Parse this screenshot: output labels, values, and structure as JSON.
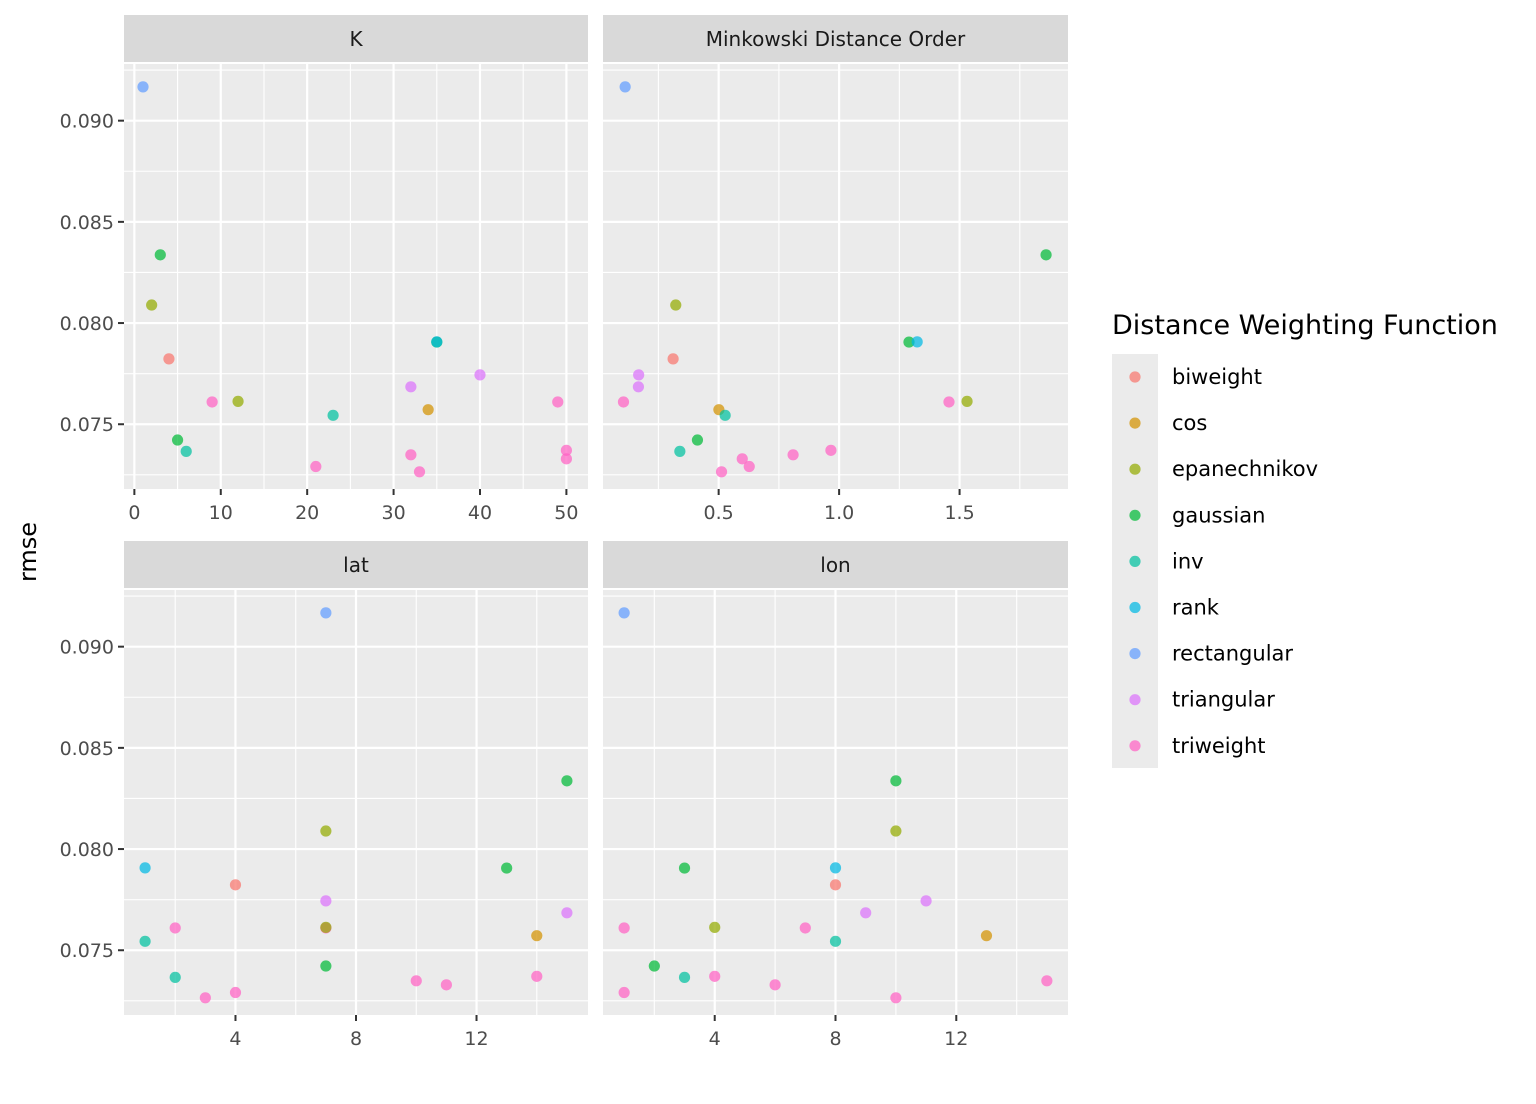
{
  "chart_data": {
    "type": "scatter",
    "ylabel": "rmse",
    "ylim": [
      0.0718,
      0.0928
    ],
    "y_ticks": [
      "0.075",
      "0.080",
      "0.085",
      "0.090"
    ],
    "y_tick_values": [
      0.075,
      0.08,
      0.085,
      0.09
    ],
    "grid": true,
    "legend": {
      "title": "Distance Weighting Function",
      "placement": "right",
      "entries": [
        {
          "name": "biweight",
          "color": "#F8766D"
        },
        {
          "name": "cos",
          "color": "#D39200"
        },
        {
          "name": "epanechnikov",
          "color": "#93AA00"
        },
        {
          "name": "gaussian",
          "color": "#00BA38"
        },
        {
          "name": "inv",
          "color": "#00C19F"
        },
        {
          "name": "rank",
          "color": "#00B9E3"
        },
        {
          "name": "rectangular",
          "color": "#619CFF"
        },
        {
          "name": "triangular",
          "color": "#DB72FB"
        },
        {
          "name": "triweight",
          "color": "#FF61C3"
        }
      ]
    },
    "panels": [
      {
        "title": "K",
        "param": "K",
        "xlim": [
          -1.2,
          52.5
        ],
        "x_ticks": [
          "0",
          "10",
          "20",
          "30",
          "40",
          "50"
        ],
        "x_tick_values": [
          0,
          10,
          20,
          30,
          40,
          50
        ],
        "x_minor": [
          5,
          15,
          25,
          35,
          45
        ]
      },
      {
        "title": "Minkowski Distance Order",
        "param": "p",
        "xlim": [
          0.02,
          1.95
        ],
        "x_ticks": [
          "0.5",
          "1.0",
          "1.5"
        ],
        "x_tick_values": [
          0.5,
          1.0,
          1.5
        ],
        "x_minor": [
          0.25,
          0.75,
          1.25,
          1.75
        ]
      },
      {
        "title": "lat",
        "param": "lat",
        "xlim": [
          0.3,
          15.7
        ],
        "x_ticks": [
          "4",
          "8",
          "12"
        ],
        "x_tick_values": [
          4,
          8,
          12
        ],
        "x_minor": [
          2,
          6,
          10,
          14
        ]
      },
      {
        "title": "lon",
        "param": "lon",
        "xlim": [
          0.3,
          15.7
        ],
        "x_ticks": [
          "4",
          "8",
          "12"
        ],
        "x_tick_values": [
          4,
          8,
          12
        ],
        "x_minor": [
          2,
          6,
          10,
          14
        ]
      }
    ],
    "points": [
      {
        "fn": "rectangular",
        "rmse": 0.09167,
        "K": 1,
        "p": 0.112,
        "lat": 7,
        "lon": 1
      },
      {
        "fn": "gaussian",
        "rmse": 0.08337,
        "K": 3,
        "p": 1.859,
        "lat": 15,
        "lon": 10
      },
      {
        "fn": "epanechnikov",
        "rmse": 0.08089,
        "K": 2,
        "p": 0.322,
        "lat": 7,
        "lon": 10
      },
      {
        "fn": "gaussian",
        "rmse": 0.07906,
        "K": 35,
        "p": 1.29,
        "lat": 13,
        "lon": 3
      },
      {
        "fn": "rank",
        "rmse": 0.07907,
        "K": 35,
        "p": 1.324,
        "lat": 1,
        "lon": 8
      },
      {
        "fn": "biweight",
        "rmse": 0.07823,
        "K": 4,
        "p": 0.311,
        "lat": 4,
        "lon": 8
      },
      {
        "fn": "triangular",
        "rmse": 0.07744,
        "K": 40,
        "p": 0.168,
        "lat": 7,
        "lon": 11
      },
      {
        "fn": "triangular",
        "rmse": 0.07685,
        "K": 32,
        "p": 0.167,
        "lat": 15,
        "lon": 9
      },
      {
        "fn": "triweight",
        "rmse": 0.0761,
        "K": 9,
        "p": 0.105,
        "lat": 2,
        "lon": 1
      },
      {
        "fn": "triweight",
        "rmse": 0.0761,
        "K": 49,
        "p": 1.456,
        "lat": 7,
        "lon": 7
      },
      {
        "fn": "epanechnikov",
        "rmse": 0.07613,
        "K": 12,
        "p": 1.531,
        "lat": 7,
        "lon": 4
      },
      {
        "fn": "cos",
        "rmse": 0.07572,
        "K": 34,
        "p": 0.501,
        "lat": 14,
        "lon": 13
      },
      {
        "fn": "inv",
        "rmse": 0.07544,
        "K": 23,
        "p": 0.527,
        "lat": 1,
        "lon": 8
      },
      {
        "fn": "gaussian",
        "rmse": 0.07422,
        "K": 5,
        "p": 0.412,
        "lat": 7,
        "lon": 2
      },
      {
        "fn": "inv",
        "rmse": 0.07366,
        "K": 6,
        "p": 0.339,
        "lat": 2,
        "lon": 3
      },
      {
        "fn": "triweight",
        "rmse": 0.07371,
        "K": 50,
        "p": 0.966,
        "lat": 14,
        "lon": 4
      },
      {
        "fn": "triweight",
        "rmse": 0.07349,
        "K": 32,
        "p": 0.809,
        "lat": 10,
        "lon": 15
      },
      {
        "fn": "triweight",
        "rmse": 0.07329,
        "K": 50,
        "p": 0.598,
        "lat": 11,
        "lon": 6
      },
      {
        "fn": "triweight",
        "rmse": 0.07291,
        "K": 21,
        "p": 0.627,
        "lat": 4,
        "lon": 1
      },
      {
        "fn": "triweight",
        "rmse": 0.07265,
        "K": 33,
        "p": 0.512,
        "lat": 3,
        "lon": 10
      }
    ]
  }
}
